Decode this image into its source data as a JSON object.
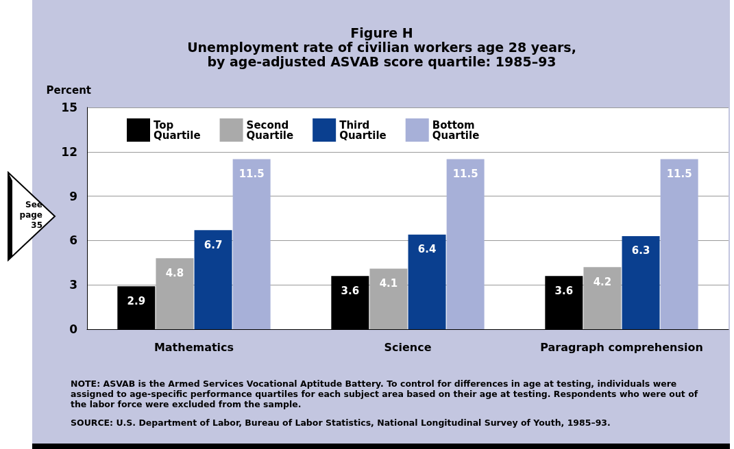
{
  "chart_data": {
    "type": "bar",
    "title": "Figure H",
    "subtitle": "Unemployment rate of civilian workers age 28 years, by age-adjusted ASVAB score quartile: 1985–93",
    "ylabel": "Percent",
    "categories": [
      "Mathematics",
      "Science",
      "Paragraph comprehension"
    ],
    "series": [
      {
        "name": "Top Quartile",
        "color": "#000000",
        "values": [
          2.9,
          3.6,
          3.6
        ]
      },
      {
        "name": "Second Quartile",
        "color": "#aaaaaa",
        "values": [
          4.8,
          4.1,
          4.2
        ]
      },
      {
        "name": "Third Quartile",
        "color": "#0a3f8f",
        "values": [
          6.7,
          6.4,
          6.3
        ]
      },
      {
        "name": "Bottom Quartile",
        "color": "#a7b0d8",
        "values": [
          11.5,
          11.5,
          11.5
        ]
      }
    ],
    "ylim": [
      0,
      15
    ],
    "yticks": [
      0,
      3,
      6,
      9,
      12,
      15
    ],
    "grid": "y",
    "legend": "top left",
    "data_labels": true,
    "annotations": [
      "See page 35",
      "NOTE: ASVAB is the Armed Services Vocational Aptitude Battery. To control for differences in age at testing, individuals were assigned to age-specific performance quartiles for each subject area based on their age at testing. Respondents who were out of the labor force were excluded from the sample.",
      "SOURCE: U.S. Department of Labor, Bureau of Labor Statistics, National Longitudinal Survey of Youth, 1985–93."
    ]
  }
}
